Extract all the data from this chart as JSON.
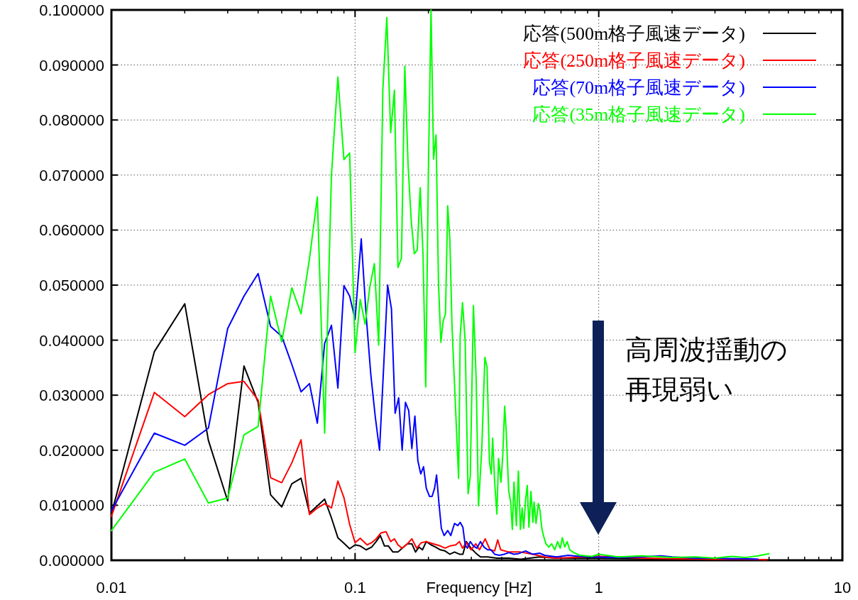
{
  "chart_data": {
    "type": "line",
    "xlabel": "Frequency [Hz]",
    "log": "x",
    "grid": true,
    "legend": "top right",
    "line_style": "solid",
    "xlim": [
      0.01,
      10
    ],
    "xticks": [
      0.01,
      0.1,
      1,
      10
    ],
    "ylim": [
      0,
      0.1
    ],
    "yticks": [
      {
        "value": 0,
        "label": "0.000000"
      },
      {
        "value": 0.01,
        "label": "0.010000"
      },
      {
        "value": 0.02,
        "label": "0.020000"
      },
      {
        "value": 0.03,
        "label": "0.030000"
      },
      {
        "value": 0.04,
        "label": "0.040000"
      },
      {
        "value": 0.05,
        "label": "0.050000"
      },
      {
        "value": 0.06,
        "label": "0.060000"
      },
      {
        "value": 0.07,
        "label": "0.070000"
      },
      {
        "value": 0.08,
        "label": "0.080000"
      },
      {
        "value": 0.09,
        "label": "0.090000"
      },
      {
        "value": 0.1,
        "label": "0.100000"
      }
    ],
    "annotations": [
      "高周波揺動の再現弱い"
    ],
    "series": [
      {
        "name": "応答(500m格子風速データ)",
        "color": "#000000",
        "x": [
          0.01,
          0.015,
          0.02,
          0.025,
          0.03,
          0.035,
          0.04,
          0.045,
          0.05,
          0.055,
          0.06,
          0.065,
          0.07,
          0.075,
          0.08,
          0.085,
          0.09,
          0.095,
          0.1,
          0.105,
          0.111,
          0.117,
          0.122,
          0.127,
          0.132,
          0.137,
          0.143,
          0.15,
          0.156,
          0.164,
          0.171,
          0.177,
          0.183,
          0.189,
          0.196,
          0.205,
          0.214,
          0.224,
          0.234,
          0.245,
          0.256,
          0.268,
          0.277,
          0.286,
          0.299,
          0.313,
          0.327,
          0.35,
          0.382,
          0.428,
          0.478,
          0.572,
          0.672,
          1.0,
          1.5,
          2,
          3,
          4,
          4.9
        ],
        "values": [
          0.0084,
          0.0379,
          0.0466,
          0.0218,
          0.0108,
          0.0353,
          0.0287,
          0.0119,
          0.0097,
          0.0139,
          0.0149,
          0.0086,
          0.0099,
          0.0111,
          0.0077,
          0.0041,
          0.0031,
          0.0021,
          0.0028,
          0.0026,
          0.0019,
          0.0024,
          0.0034,
          0.0045,
          0.0026,
          0.0026,
          0.0015,
          0.0015,
          0.0022,
          0.003,
          0.003,
          0.0015,
          0.0024,
          0.0019,
          0.0034,
          0.0028,
          0.0024,
          0.0019,
          0.0017,
          0.0011,
          0.0015,
          0.0011,
          0.0011,
          0.0034,
          0.0022,
          0.0013,
          0.0006,
          0.0006,
          0.0004,
          0.0004,
          0.0002,
          0.0006,
          0.0004,
          0.0004,
          0.0003,
          0.0002,
          0.0002,
          0.0002,
          0.0001
        ]
      },
      {
        "name": "応答(250m格子風速データ)",
        "color": "#ff0000",
        "x": [
          0.01,
          0.015,
          0.02,
          0.025,
          0.03,
          0.035,
          0.04,
          0.045,
          0.05,
          0.055,
          0.06,
          0.065,
          0.07,
          0.075,
          0.08,
          0.085,
          0.09,
          0.095,
          0.1,
          0.105,
          0.112,
          0.117,
          0.122,
          0.128,
          0.134,
          0.14,
          0.145,
          0.15,
          0.156,
          0.164,
          0.171,
          0.179,
          0.187,
          0.196,
          0.209,
          0.224,
          0.234,
          0.245,
          0.259,
          0.268,
          0.276,
          0.286,
          0.299,
          0.313,
          0.324,
          0.342,
          0.358,
          0.374,
          0.385,
          0.396,
          0.428,
          0.478,
          0.535,
          0.599,
          0.672,
          1.0,
          1.2,
          1.5,
          2,
          3,
          4,
          4.9
        ],
        "values": [
          0.008,
          0.0305,
          0.0261,
          0.0301,
          0.0321,
          0.0325,
          0.0291,
          0.015,
          0.0141,
          0.0177,
          0.0219,
          0.0083,
          0.0095,
          0.0103,
          0.0095,
          0.0144,
          0.0114,
          0.0065,
          0.0032,
          0.004,
          0.0028,
          0.0032,
          0.0039,
          0.005,
          0.0052,
          0.0034,
          0.0039,
          0.0028,
          0.0022,
          0.003,
          0.0039,
          0.0022,
          0.0032,
          0.0034,
          0.003,
          0.0026,
          0.0022,
          0.0026,
          0.0028,
          0.0034,
          0.0022,
          0.0032,
          0.0019,
          0.003,
          0.0019,
          0.0039,
          0.0019,
          0.0017,
          0.0037,
          0.0019,
          0.0015,
          0.0015,
          0.0011,
          0.0006,
          0.0004,
          0.0007,
          0.0006,
          0.0004,
          0.0003,
          0.0002,
          0.0002,
          0.0001
        ]
      },
      {
        "name": "応答(70m格子風速データ)",
        "color": "#0000ff",
        "x": [
          0.01,
          0.015,
          0.02,
          0.025,
          0.03,
          0.035,
          0.04,
          0.045,
          0.05,
          0.055,
          0.06,
          0.065,
          0.07,
          0.075,
          0.08,
          0.085,
          0.09,
          0.095,
          0.1,
          0.106,
          0.111,
          0.116,
          0.121,
          0.126,
          0.131,
          0.136,
          0.141,
          0.146,
          0.151,
          0.156,
          0.161,
          0.166,
          0.171,
          0.176,
          0.181,
          0.186,
          0.191,
          0.196,
          0.202,
          0.207,
          0.212,
          0.216,
          0.221,
          0.226,
          0.232,
          0.24,
          0.247,
          0.256,
          0.264,
          0.27,
          0.277,
          0.283,
          0.289,
          0.297,
          0.306,
          0.316,
          0.327,
          0.338,
          0.35,
          0.361,
          0.374,
          0.391,
          0.409,
          0.428,
          0.448,
          0.468,
          0.501,
          0.535,
          0.572,
          0.599,
          0.672,
          0.75,
          0.836,
          0.937,
          1.2,
          1.5,
          1.8,
          2,
          2.5,
          3,
          3.5,
          4,
          4.5
        ],
        "values": [
          0.009,
          0.0231,
          0.0209,
          0.024,
          0.0421,
          0.048,
          0.0521,
          0.0425,
          0.0407,
          0.0356,
          0.0306,
          0.0321,
          0.0249,
          0.0394,
          0.0427,
          0.0313,
          0.0499,
          0.048,
          0.0438,
          0.0584,
          0.0446,
          0.0338,
          0.0261,
          0.02,
          0.0351,
          0.05,
          0.0457,
          0.0267,
          0.0295,
          0.02,
          0.0287,
          0.0272,
          0.0203,
          0.0262,
          0.0181,
          0.0157,
          0.017,
          0.0131,
          0.0116,
          0.0116,
          0.0131,
          0.0155,
          0.0103,
          0.0058,
          0.0045,
          0.0054,
          0.0045,
          0.0067,
          0.0063,
          0.0069,
          0.006,
          0.0028,
          0.0022,
          0.0034,
          0.0026,
          0.0022,
          0.0034,
          0.0024,
          0.0019,
          0.0019,
          0.0011,
          0.0009,
          0.0011,
          0.0014,
          0.0011,
          0.0012,
          0.0017,
          0.0011,
          0.0013,
          0.0009,
          0.0006,
          0.0009,
          0.0007,
          0.0006,
          0.0005,
          0.0006,
          0.0008,
          0.0006,
          0.0004,
          0.0004,
          0.0003,
          0.0003,
          0.0002
        ]
      },
      {
        "name": "応答(35m格子風速データ)",
        "color": "#00ff00",
        "x": [
          0.01,
          0.015,
          0.02,
          0.025,
          0.03,
          0.035,
          0.04,
          0.045,
          0.05,
          0.055,
          0.06,
          0.065,
          0.07,
          0.075,
          0.08,
          0.085,
          0.09,
          0.095,
          0.1,
          0.105,
          0.11,
          0.115,
          0.12,
          0.125,
          0.13,
          0.135,
          0.14,
          0.145,
          0.15,
          0.155,
          0.16,
          0.165,
          0.17,
          0.175,
          0.18,
          0.185,
          0.19,
          0.195,
          0.2,
          0.205,
          0.21,
          0.215,
          0.22,
          0.225,
          0.23,
          0.235,
          0.24,
          0.245,
          0.25,
          0.266,
          0.27,
          0.276,
          0.283,
          0.291,
          0.297,
          0.306,
          0.314,
          0.321,
          0.331,
          0.341,
          0.348,
          0.356,
          0.362,
          0.367,
          0.374,
          0.382,
          0.388,
          0.397,
          0.404,
          0.411,
          0.417,
          0.427,
          0.435,
          0.442,
          0.449,
          0.459,
          0.468,
          0.477,
          0.485,
          0.492,
          0.501,
          0.509,
          0.517,
          0.527,
          0.537,
          0.543,
          0.553,
          0.565,
          0.574,
          0.584,
          0.593,
          0.607,
          0.624,
          0.641,
          0.66,
          0.678,
          0.695,
          0.709,
          0.725,
          0.742,
          0.76,
          0.789,
          0.836,
          0.937,
          1.0,
          1.2,
          1.5,
          2,
          2.5,
          3,
          3.5,
          4,
          4.5,
          5
        ],
        "values": [
          0.0054,
          0.016,
          0.0184,
          0.0104,
          0.0113,
          0.0228,
          0.0243,
          0.048,
          0.0397,
          0.0495,
          0.0448,
          0.0548,
          0.066,
          0.0231,
          0.07,
          0.0878,
          0.0728,
          0.074,
          0.0377,
          0.0474,
          0.0429,
          0.0497,
          0.0539,
          0.0391,
          0.0855,
          0.0986,
          0.0777,
          0.0854,
          0.0532,
          0.0549,
          0.0898,
          0.0719,
          0.0617,
          0.0557,
          0.0564,
          0.0677,
          0.0557,
          0.0315,
          0.071,
          0.1,
          0.0729,
          0.0773,
          0.0502,
          0.0396,
          0.0435,
          0.0448,
          0.0644,
          0.0581,
          0.0424,
          0.0149,
          0.0407,
          0.0468,
          0.0399,
          0.0121,
          0.0153,
          0.0463,
          0.033,
          0.0099,
          0.02,
          0.0369,
          0.0351,
          0.0179,
          0.0157,
          0.0222,
          0.0142,
          0.0084,
          0.0185,
          0.0142,
          0.0192,
          0.028,
          0.0235,
          0.0127,
          0.0106,
          0.0056,
          0.0142,
          0.0063,
          0.0162,
          0.0056,
          0.0095,
          0.0058,
          0.011,
          0.0136,
          0.006,
          0.0125,
          0.0069,
          0.0106,
          0.0067,
          0.0103,
          0.0091,
          0.0058,
          0.0045,
          0.003,
          0.0024,
          0.003,
          0.0019,
          0.0034,
          0.0022,
          0.0041,
          0.0024,
          0.0034,
          0.0019,
          0.0014,
          0.0009,
          0.0007,
          0.0011,
          0.0006,
          0.0008,
          0.0005,
          0.0006,
          0.0004,
          0.0007,
          0.0005,
          0.0008,
          0.0012
        ]
      }
    ]
  }
}
